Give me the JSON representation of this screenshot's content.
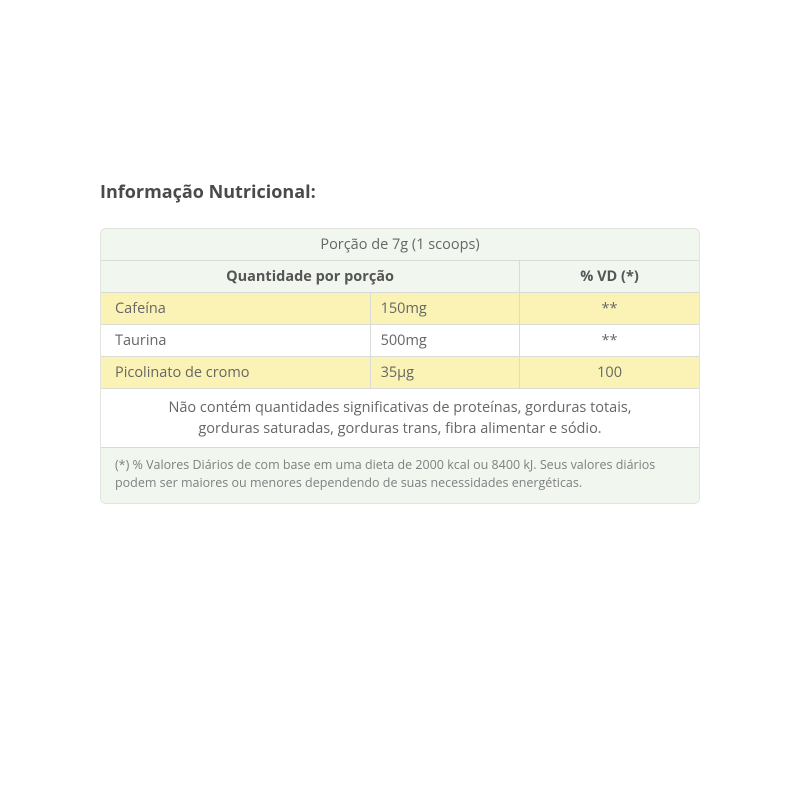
{
  "heading": "Informação Nutricional:",
  "table": {
    "colors": {
      "panel_bg": "#f1f6ef",
      "panel_border": "#e0e6dd",
      "cell_border": "#d7dcd4",
      "row_odd_bg": "#fbf3b5",
      "row_even_bg": "#ffffff",
      "text": "#666666",
      "header_text": "#555555",
      "footnote_text": "#808080"
    },
    "typography": {
      "heading_fontsize_pt": 14,
      "body_fontsize_pt": 11,
      "footnote_fontsize_pt": 9.5
    },
    "columns": [
      {
        "key": "name",
        "width_pct": 45,
        "align": "left"
      },
      {
        "key": "amount",
        "width_pct": 25,
        "align": "left"
      },
      {
        "key": "vd",
        "width_pct": 30,
        "align": "center"
      }
    ],
    "portion": "Porção de 7g (1 scoops)",
    "header_qty": "Quantidade por porção",
    "header_vd": "% VD (*)",
    "rows": [
      {
        "name": "Cafeína",
        "amount": "150mg",
        "vd": "**"
      },
      {
        "name": "Taurina",
        "amount": "500mg",
        "vd": "**"
      },
      {
        "name": "Picolinato de cromo",
        "amount": "35µg",
        "vd": "100"
      }
    ],
    "note": "Não contém quantidades significativas de proteínas, gorduras totais, gorduras saturadas, gorduras trans, fibra alimentar e sódio.",
    "footnote": "(*) % Valores Diários de com base em uma dieta de 2000 kcal ou 8400 kJ. Seus valores diários podem ser maiores ou menores dependendo de suas necessidades energéticas."
  }
}
